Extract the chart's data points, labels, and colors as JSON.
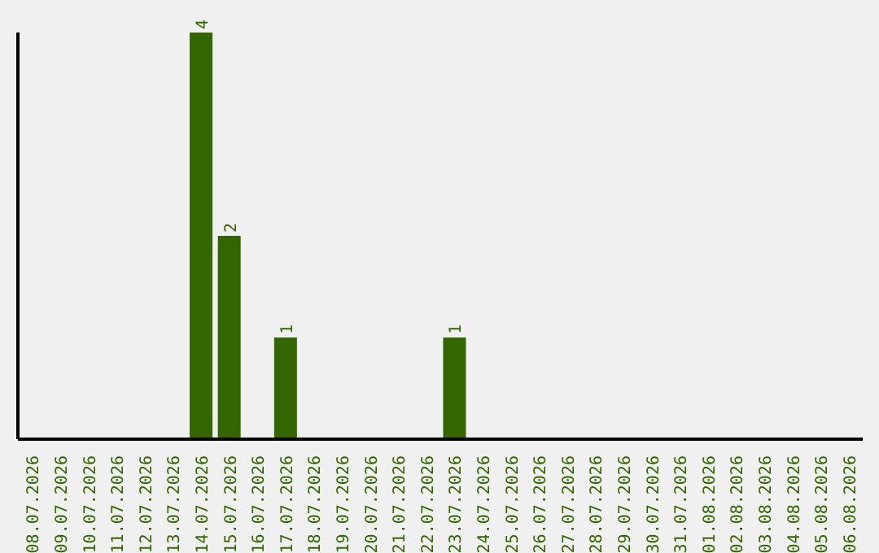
{
  "chart_data": {
    "type": "bar",
    "categories": [
      "08.07.2026",
      "09.07.2026",
      "10.07.2026",
      "11.07.2026",
      "12.07.2026",
      "13.07.2026",
      "14.07.2026",
      "15.07.2026",
      "16.07.2026",
      "17.07.2026",
      "18.07.2026",
      "19.07.2026",
      "20.07.2026",
      "21.07.2026",
      "22.07.2026",
      "23.07.2026",
      "24.07.2026",
      "25.07.2026",
      "26.07.2026",
      "27.07.2026",
      "28.07.2026",
      "29.07.2026",
      "30.07.2026",
      "31.07.2026",
      "01.08.2026",
      "02.08.2026",
      "03.08.2026",
      "04.08.2026",
      "05.08.2026",
      "06.08.2026"
    ],
    "values": [
      null,
      null,
      null,
      null,
      null,
      null,
      4,
      2,
      null,
      1,
      null,
      null,
      null,
      null,
      null,
      1,
      null,
      null,
      null,
      null,
      null,
      null,
      null,
      null,
      null,
      null,
      null,
      null,
      null,
      null
    ],
    "data_labels": true,
    "color": "#336600",
    "tick_labels": "x"
  }
}
